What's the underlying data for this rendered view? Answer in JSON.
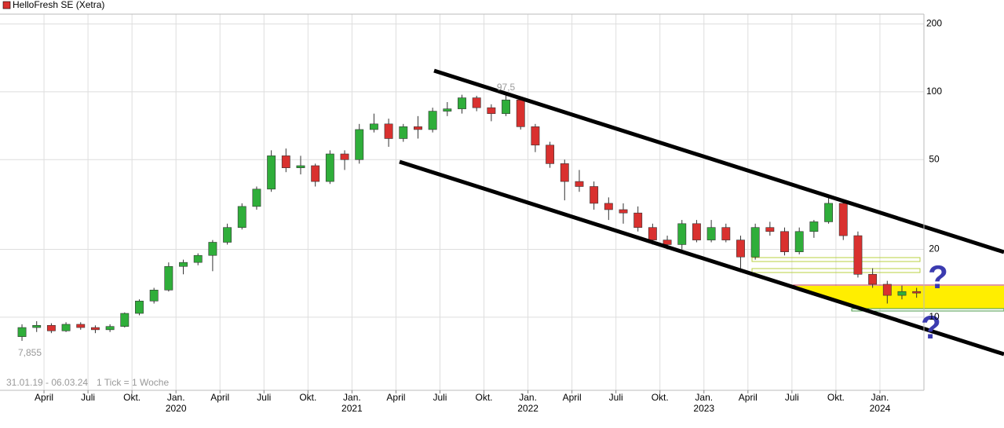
{
  "chart_data": {
    "type": "candlestick",
    "log_scale": true,
    "grid": true,
    "ylim": [
      4.74,
      221
    ],
    "yticks": [
      200,
      100,
      50,
      20,
      10
    ],
    "xlim": [
      "2019-01",
      "2024-03"
    ],
    "xticks": [
      {
        "value": "2019-04",
        "label": "April"
      },
      {
        "value": "2019-07",
        "label": "Juli"
      },
      {
        "value": "2019-10",
        "label": "Okt."
      },
      {
        "value": "2020-01",
        "label": "Jan."
      },
      {
        "value": "2020-04",
        "label": "April"
      },
      {
        "value": "2020-07",
        "label": "Juli"
      },
      {
        "value": "2020-10",
        "label": "Okt."
      },
      {
        "value": "2021-01",
        "label": "Jan."
      },
      {
        "value": "2021-04",
        "label": "April"
      },
      {
        "value": "2021-07",
        "label": "Juli"
      },
      {
        "value": "2021-10",
        "label": "Okt."
      },
      {
        "value": "2022-01",
        "label": "Jan."
      },
      {
        "value": "2022-04",
        "label": "April"
      },
      {
        "value": "2022-07",
        "label": "Juli"
      },
      {
        "value": "2022-10",
        "label": "Okt."
      },
      {
        "value": "2023-01",
        "label": "Jan."
      },
      {
        "value": "2023-04",
        "label": "April"
      },
      {
        "value": "2023-07",
        "label": "Juli"
      },
      {
        "value": "2023-10",
        "label": "Okt."
      },
      {
        "value": "2024-01",
        "label": "Jan."
      }
    ],
    "x_year_labels": [
      {
        "value": "2020-01",
        "label": "2020"
      },
      {
        "value": "2021-01",
        "label": "2021"
      },
      {
        "value": "2022-01",
        "label": "2022"
      },
      {
        "value": "2023-01",
        "label": "2023"
      },
      {
        "value": "2024-01",
        "label": "2024"
      }
    ],
    "period_label": "31.01.19 - 06.03.24",
    "tick_label": "1 Tick = 1 Woche",
    "x": [
      "2019-02",
      "2019-03",
      "2019-04",
      "2019-05",
      "2019-06",
      "2019-07",
      "2019-08",
      "2019-09",
      "2019-10",
      "2019-11",
      "2019-12",
      "2020-01",
      "2020-02",
      "2020-03",
      "2020-04",
      "2020-05",
      "2020-06",
      "2020-07",
      "2020-08",
      "2020-09",
      "2020-10",
      "2020-11",
      "2020-12",
      "2021-01",
      "2021-02",
      "2021-03",
      "2021-04",
      "2021-05",
      "2021-06",
      "2021-07",
      "2021-08",
      "2021-09",
      "2021-10",
      "2021-11",
      "2021-12",
      "2022-01",
      "2022-02",
      "2022-03",
      "2022-04",
      "2022-05",
      "2022-06",
      "2022-07",
      "2022-08",
      "2022-09",
      "2022-10",
      "2022-11",
      "2022-12",
      "2023-01",
      "2023-02",
      "2023-03",
      "2023-04",
      "2023-05",
      "2023-06",
      "2023-07",
      "2023-08",
      "2023-09",
      "2023-10",
      "2023-11",
      "2023-12",
      "2024-01",
      "2024-02",
      "2024-03"
    ],
    "series": [
      {
        "name": "HelloFresh SE (Xetra)",
        "color": "#d9312f",
        "up_color": "#2fae3a",
        "down_color": "#d9312f",
        "open": [
          8.2,
          9.0,
          9.2,
          8.7,
          9.3,
          9.0,
          8.8,
          9.1,
          10.4,
          11.8,
          13.2,
          16.8,
          17.5,
          18.8,
          21.5,
          25,
          31,
          37,
          52,
          46,
          47,
          40,
          53,
          50,
          68,
          72,
          62,
          70,
          68,
          82,
          84,
          94,
          85,
          80,
          92,
          70,
          58,
          48,
          40,
          38,
          32,
          30,
          29,
          25,
          22,
          21,
          26,
          22,
          25,
          22,
          18.5,
          25,
          24,
          19.5,
          24,
          26.5,
          32,
          23,
          15.5,
          14,
          12.5,
          13
        ],
        "high": [
          9.3,
          9.6,
          9.4,
          9.5,
          9.5,
          9.2,
          9.3,
          10.5,
          12.0,
          13.5,
          17.5,
          18.0,
          19.2,
          22.0,
          26,
          32,
          38,
          55,
          56,
          52,
          48,
          55,
          55,
          72,
          80,
          76,
          72,
          78,
          85,
          90,
          97,
          96,
          88,
          97.5,
          95,
          72,
          60,
          50,
          45,
          40,
          34,
          32,
          31,
          26,
          23,
          27,
          27,
          27,
          26,
          23,
          26,
          26.5,
          25,
          25,
          27,
          34,
          33,
          24,
          16.5,
          14.5,
          13.8,
          13.5
        ],
        "low": [
          7.855,
          8.6,
          8.5,
          8.6,
          8.8,
          8.5,
          8.6,
          9.0,
          10.2,
          11.5,
          13.0,
          15.5,
          17.0,
          16,
          21,
          24.5,
          30,
          36,
          44,
          43,
          38,
          39,
          45,
          48,
          66,
          57,
          60,
          62,
          66,
          78,
          80,
          82,
          74,
          78,
          68,
          54,
          46,
          33,
          36,
          30,
          27,
          26,
          24,
          21,
          20,
          20,
          21.5,
          21.5,
          21.5,
          16.5,
          18,
          23,
          18.8,
          19,
          22.5,
          26,
          22,
          15,
          13.5,
          11.5,
          12,
          12.2
        ],
        "close": [
          9.0,
          9.2,
          8.7,
          9.3,
          9.0,
          8.8,
          9.1,
          10.4,
          11.8,
          13.2,
          16.8,
          17.5,
          18.8,
          21.5,
          25,
          31,
          37,
          52,
          46,
          47,
          40,
          53,
          50,
          68,
          72,
          62,
          70,
          68,
          82,
          84,
          94,
          85,
          80,
          92,
          70,
          58,
          48,
          40,
          38,
          32,
          30,
          29,
          25,
          22,
          21,
          26,
          22,
          25,
          22,
          18.5,
          25,
          24,
          19.5,
          24,
          26.5,
          32,
          23,
          15.5,
          14,
          12.5,
          13,
          12.8
        ]
      }
    ],
    "point_labels": [
      {
        "x": "2021-11",
        "value": 97.5,
        "label": "97,5"
      },
      {
        "x": "2019-02",
        "value": 7.855,
        "label": "7,855"
      }
    ],
    "question_marks": [
      "?",
      "?"
    ]
  }
}
